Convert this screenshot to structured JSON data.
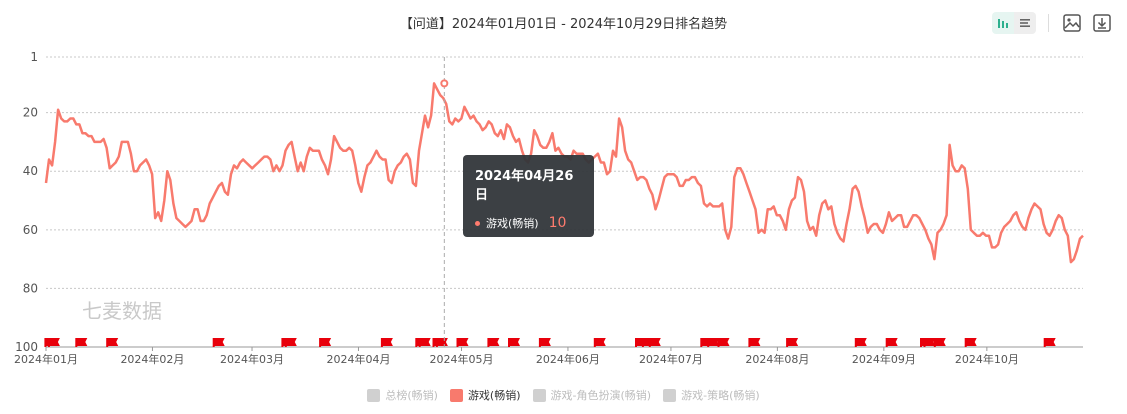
{
  "header": {
    "title": "【问道】2024年01月01日 - 2024年10月29日排名趋势"
  },
  "toolbar": {
    "icons": [
      "bar-chart-icon",
      "list-icon",
      "image-save-icon",
      "download-icon"
    ]
  },
  "watermark": "七麦数据",
  "colors": {
    "line": "#f87a6d",
    "flag": "#e8000b",
    "tooltip_bg": "#32363a",
    "grid": "#c8c8c8"
  },
  "tooltip": {
    "date": "2024年04月26日",
    "series": "游戏(畅销)",
    "value": "10"
  },
  "legend": [
    {
      "label": "总榜(畅销)",
      "active": false
    },
    {
      "label": "游戏(畅销)",
      "active": true
    },
    {
      "label": "游戏-角色扮演(畅销)",
      "active": false
    },
    {
      "label": "游戏-策略(畅销)",
      "active": false
    }
  ],
  "chart_data": {
    "type": "line",
    "title": "【问道】2024年01月01日 - 2024年10月29日排名趋势",
    "y_inverted": true,
    "ylim": [
      1,
      100
    ],
    "y_ticks": [
      "1",
      "20",
      "40",
      "60",
      "80",
      "100"
    ],
    "x_tick_labels": [
      "2024年01月",
      "2024年02月",
      "2024年03月",
      "2024年04月",
      "2024年05月",
      "2024年06月",
      "2024年07月",
      "2024年08月",
      "2024年09月",
      "2024年10月"
    ],
    "start_date": "2024-01-01",
    "end_date": "2024-10-29",
    "grid": true,
    "legend_position": "bottom",
    "series": [
      {
        "name": "游戏(畅销)",
        "color": "#f87a6d",
        "values": [
          44,
          36,
          38,
          30,
          19,
          22,
          23,
          23,
          22,
          22,
          24,
          24,
          27,
          27,
          28,
          28,
          30,
          30,
          30,
          29,
          32,
          39,
          38,
          37,
          35,
          30,
          30,
          30,
          34,
          40,
          40,
          38,
          37,
          36,
          38,
          41,
          56,
          54,
          57,
          50,
          40,
          43,
          51,
          56,
          57,
          58,
          59,
          58,
          57,
          53,
          53,
          57,
          57,
          55,
          51,
          49,
          47,
          45,
          44,
          47,
          48,
          41,
          38,
          39,
          37,
          36,
          37,
          38,
          39,
          38,
          37,
          36,
          35,
          35,
          36,
          40,
          38,
          40,
          38,
          33,
          31,
          30,
          35,
          40,
          37,
          40,
          35,
          32,
          33,
          33,
          33,
          36,
          38,
          41,
          36,
          28,
          30,
          32,
          33,
          33,
          32,
          33,
          38,
          44,
          47,
          42,
          38,
          37,
          35,
          33,
          35,
          36,
          36,
          43,
          44,
          40,
          38,
          37,
          35,
          34,
          36,
          44,
          45,
          33,
          27,
          21,
          25,
          21,
          10,
          12,
          14,
          15,
          17,
          23,
          24,
          22,
          23,
          22,
          18,
          20,
          22,
          21,
          23,
          24,
          26,
          25,
          23,
          24,
          27,
          28,
          26,
          29,
          24,
          25,
          28,
          30,
          29,
          33,
          36,
          37,
          34,
          26,
          28,
          31,
          32,
          32,
          30,
          27,
          33,
          32,
          34,
          35,
          35,
          36,
          33,
          34,
          34,
          34,
          36,
          37,
          36,
          35,
          34,
          37,
          37,
          41,
          40,
          33,
          35,
          22,
          25,
          33,
          36,
          37,
          40,
          43,
          42,
          42,
          43,
          46,
          48,
          53,
          50,
          46,
          42,
          41,
          41,
          41,
          42,
          45,
          45,
          43,
          43,
          42,
          42,
          44,
          45,
          51,
          52,
          51,
          52,
          52,
          52,
          51,
          60,
          63,
          59,
          42,
          39,
          39,
          41,
          44,
          47,
          50,
          53,
          61,
          60,
          61,
          53,
          53,
          52,
          55,
          55,
          57,
          60,
          53,
          50,
          49,
          42,
          43,
          47,
          57,
          60,
          59,
          62,
          55,
          51,
          50,
          53,
          52,
          58,
          61,
          63,
          64,
          58,
          53,
          46,
          45,
          47,
          52,
          56,
          61,
          59,
          58,
          58,
          60,
          61,
          58,
          54,
          57,
          56,
          55,
          55,
          59,
          59,
          57,
          55,
          55,
          56,
          58,
          60,
          63,
          65,
          70,
          61,
          60,
          58,
          55,
          31,
          38,
          40,
          40,
          38,
          39,
          46,
          60,
          61,
          62,
          62,
          61,
          62,
          62,
          66,
          66,
          65,
          61,
          59,
          58,
          57,
          55,
          54,
          57,
          59,
          60,
          56,
          53,
          51,
          52,
          53,
          58,
          61,
          62,
          60,
          57,
          55,
          56,
          60,
          62,
          71,
          70,
          67,
          63,
          62
        ]
      }
    ],
    "flag_dates": [
      "2024-01-02",
      "2024-01-03",
      "2024-01-11",
      "2024-01-20",
      "2024-02-20",
      "2024-03-11",
      "2024-03-12",
      "2024-03-22",
      "2024-04-09",
      "2024-04-19",
      "2024-04-20",
      "2024-04-24",
      "2024-04-25",
      "2024-05-01",
      "2024-05-10",
      "2024-05-16",
      "2024-05-25",
      "2024-06-10",
      "2024-06-22",
      "2024-06-24",
      "2024-06-26",
      "2024-07-11",
      "2024-07-13",
      "2024-07-16",
      "2024-07-25",
      "2024-08-05",
      "2024-08-25",
      "2024-09-03",
      "2024-09-13",
      "2024-09-14",
      "2024-09-17",
      "2024-09-26",
      "2024-10-19"
    ],
    "highlight": {
      "date": "2024-04-26",
      "value": 10
    }
  }
}
